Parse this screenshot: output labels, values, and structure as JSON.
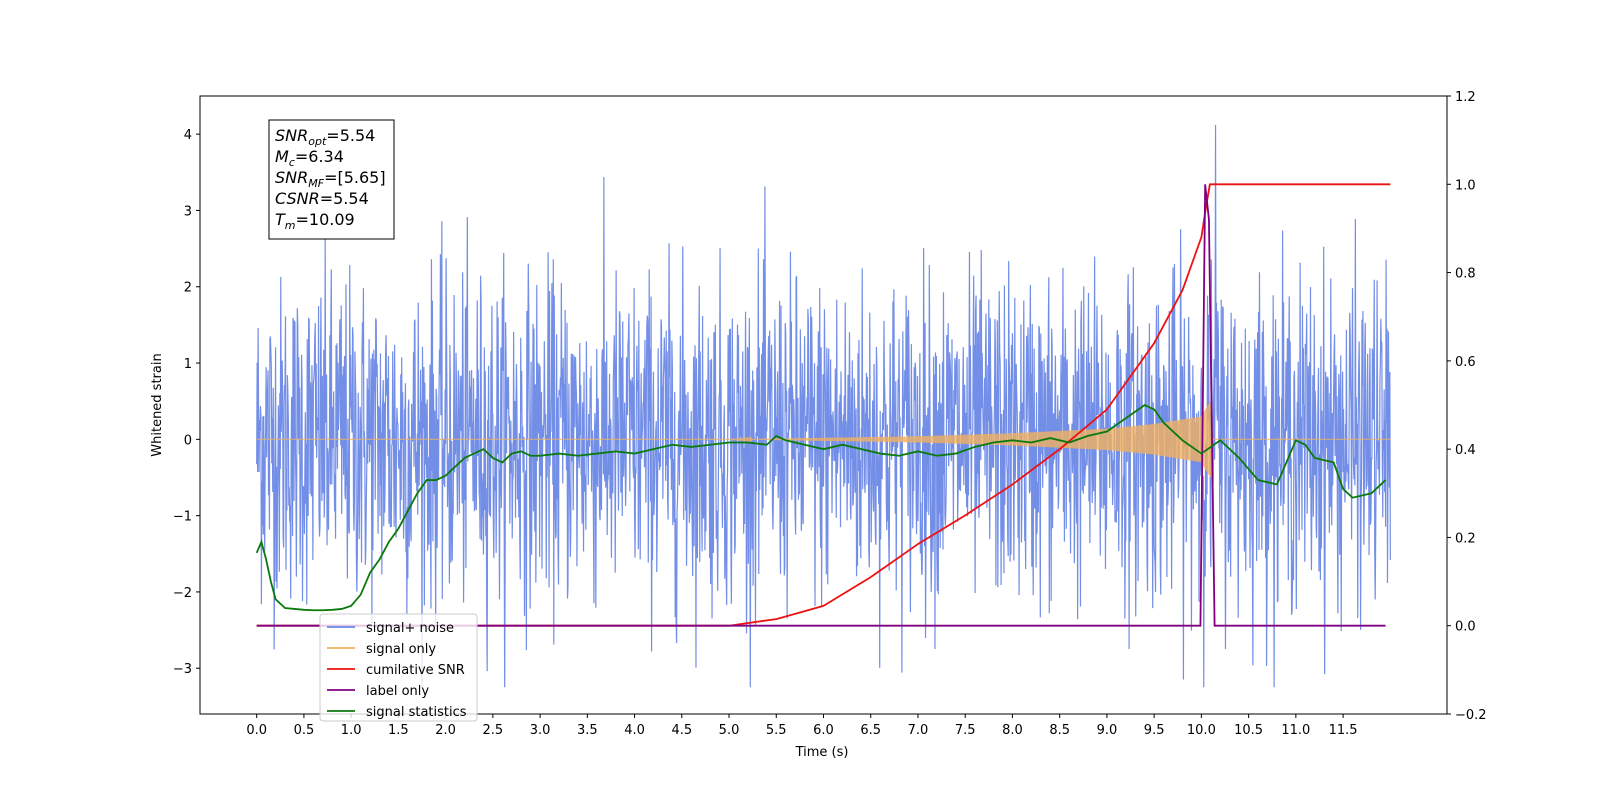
{
  "chart_data": {
    "type": "line",
    "xlabel": "Time (s)",
    "ylabel": "Whitened strain",
    "xlim": [
      -0.6,
      12.6
    ],
    "ylim": [
      -3.6,
      4.5
    ],
    "ylim_right": [
      -0.2,
      1.2
    ],
    "xticks": [
      "0.0",
      "0.5",
      "1.0",
      "1.5",
      "2.0",
      "2.5",
      "3.0",
      "3.5",
      "4.0",
      "4.5",
      "5.0",
      "5.5",
      "6.0",
      "6.5",
      "7.0",
      "7.5",
      "8.0",
      "8.5",
      "9.0",
      "9.5",
      "10.0",
      "10.5",
      "11.0",
      "11.5"
    ],
    "yticks_left": [
      "−3",
      "−2",
      "−1",
      "0",
      "1",
      "2",
      "3",
      "4"
    ],
    "yticks_right": [
      "−0.2",
      "0.0",
      "0.2",
      "0.4",
      "0.6",
      "0.8",
      "1.0",
      "1.2"
    ],
    "grid": false,
    "legend_position": "lower-left",
    "annotation": [
      {
        "base": "SNR",
        "sub": "opt",
        "value": "=5.54"
      },
      {
        "base": "M",
        "sub": "c",
        "value": "=6.34"
      },
      {
        "base": "SNR",
        "sub": "MF",
        "value": "=[5.65]"
      },
      {
        "base": "CSNR",
        "sub": "",
        "value": "=5.54"
      },
      {
        "base": "T",
        "sub": "m",
        "value": "=10.09"
      }
    ],
    "series": [
      {
        "name": "signal+ noise",
        "color": "#6a88e6",
        "axis": "left",
        "kind": "noise",
        "range": [
          0.0,
          12.0
        ],
        "approx_band": [
          -2.5,
          2.5
        ],
        "max_spike": {
          "x": 10.15,
          "y": 4.12
        }
      },
      {
        "name": "signal only",
        "color": "#f0b060",
        "axis": "left",
        "kind": "chirp",
        "range": [
          0.0,
          12.0
        ],
        "merger_time": 10.09,
        "envelope": [
          [
            5.0,
            0.0
          ],
          [
            6.0,
            0.02
          ],
          [
            7.0,
            0.04
          ],
          [
            8.0,
            0.08
          ],
          [
            9.0,
            0.14
          ],
          [
            9.5,
            0.2
          ],
          [
            10.0,
            0.3
          ],
          [
            10.1,
            0.5
          ],
          [
            10.12,
            0.0
          ]
        ]
      },
      {
        "name": "cumilative SNR",
        "color": "#ee1111",
        "axis": "right",
        "x": [
          0.0,
          5.0,
          5.5,
          6.0,
          6.5,
          7.0,
          7.5,
          8.0,
          8.5,
          9.0,
          9.5,
          9.8,
          10.0,
          10.05,
          10.09,
          10.2,
          11.0,
          12.0
        ],
        "y": [
          0.0,
          0.0,
          0.015,
          0.045,
          0.11,
          0.185,
          0.25,
          0.32,
          0.4,
          0.49,
          0.64,
          0.76,
          0.88,
          0.95,
          1.0,
          1.0,
          1.0,
          1.0
        ]
      },
      {
        "name": "label only",
        "color": "#800080",
        "axis": "right",
        "x": [
          0.0,
          9.99,
          10.04,
          10.08,
          10.14,
          11.95
        ],
        "y": [
          0.0,
          0.0,
          1.0,
          0.92,
          0.0,
          0.0
        ]
      },
      {
        "name": "signal statistics",
        "color": "#0a7a0a",
        "axis": "right",
        "x": [
          0.0,
          0.05,
          0.1,
          0.15,
          0.2,
          0.3,
          0.4,
          0.5,
          0.6,
          0.7,
          0.8,
          0.9,
          1.0,
          1.1,
          1.2,
          1.3,
          1.4,
          1.5,
          1.6,
          1.7,
          1.8,
          1.9,
          2.0,
          2.1,
          2.2,
          2.3,
          2.4,
          2.5,
          2.6,
          2.7,
          2.8,
          2.9,
          3.0,
          3.2,
          3.4,
          3.6,
          3.8,
          4.0,
          4.2,
          4.4,
          4.6,
          4.8,
          5.0,
          5.2,
          5.4,
          5.5,
          5.6,
          5.8,
          6.0,
          6.2,
          6.4,
          6.6,
          6.8,
          7.0,
          7.2,
          7.4,
          7.6,
          7.8,
          8.0,
          8.2,
          8.4,
          8.6,
          8.8,
          9.0,
          9.2,
          9.4,
          9.5,
          9.6,
          9.8,
          10.0,
          10.2,
          10.4,
          10.6,
          10.8,
          11.0,
          11.1,
          11.2,
          11.4,
          11.5,
          11.6,
          11.8,
          11.95
        ],
        "y": [
          0.165,
          0.19,
          0.15,
          0.1,
          0.06,
          0.04,
          0.038,
          0.036,
          0.035,
          0.035,
          0.036,
          0.038,
          0.045,
          0.07,
          0.12,
          0.15,
          0.19,
          0.22,
          0.26,
          0.3,
          0.33,
          0.33,
          0.34,
          0.36,
          0.38,
          0.39,
          0.4,
          0.38,
          0.37,
          0.39,
          0.395,
          0.385,
          0.385,
          0.39,
          0.385,
          0.39,
          0.395,
          0.39,
          0.4,
          0.41,
          0.405,
          0.41,
          0.415,
          0.415,
          0.41,
          0.43,
          0.42,
          0.41,
          0.4,
          0.41,
          0.4,
          0.39,
          0.385,
          0.395,
          0.385,
          0.39,
          0.405,
          0.415,
          0.42,
          0.415,
          0.425,
          0.415,
          0.43,
          0.44,
          0.47,
          0.5,
          0.49,
          0.46,
          0.42,
          0.39,
          0.42,
          0.38,
          0.33,
          0.32,
          0.42,
          0.41,
          0.38,
          0.37,
          0.31,
          0.29,
          0.3,
          0.33
        ]
      }
    ]
  }
}
